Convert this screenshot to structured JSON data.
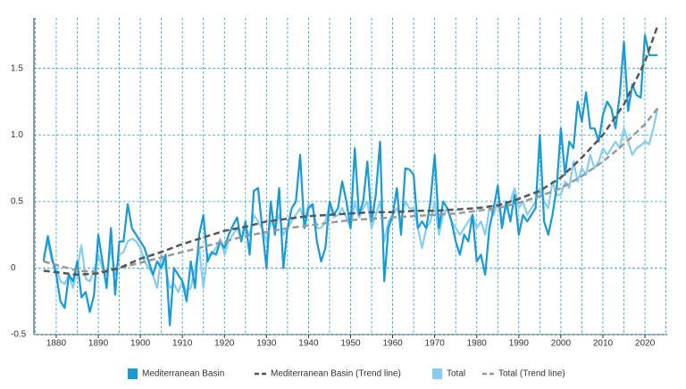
{
  "chart_data": {
    "type": "line",
    "x": [
      1877,
      1878,
      1879,
      1880,
      1881,
      1882,
      1883,
      1884,
      1885,
      1886,
      1887,
      1888,
      1889,
      1890,
      1891,
      1892,
      1893,
      1894,
      1895,
      1896,
      1897,
      1898,
      1899,
      1900,
      1901,
      1902,
      1903,
      1904,
      1905,
      1906,
      1907,
      1908,
      1909,
      1910,
      1911,
      1912,
      1913,
      1914,
      1915,
      1916,
      1917,
      1918,
      1919,
      1920,
      1921,
      1922,
      1923,
      1924,
      1925,
      1926,
      1927,
      1928,
      1929,
      1930,
      1931,
      1932,
      1933,
      1934,
      1935,
      1936,
      1937,
      1938,
      1939,
      1940,
      1941,
      1942,
      1943,
      1944,
      1945,
      1946,
      1947,
      1948,
      1949,
      1950,
      1951,
      1952,
      1953,
      1954,
      1955,
      1956,
      1957,
      1958,
      1959,
      1960,
      1961,
      1962,
      1963,
      1964,
      1965,
      1966,
      1967,
      1968,
      1969,
      1970,
      1971,
      1972,
      1973,
      1974,
      1975,
      1976,
      1977,
      1978,
      1979,
      1980,
      1981,
      1982,
      1983,
      1984,
      1985,
      1986,
      1987,
      1988,
      1989,
      1990,
      1991,
      1992,
      1993,
      1994,
      1995,
      1996,
      1997,
      1998,
      1999,
      2000,
      2001,
      2002,
      2003,
      2004,
      2005,
      2006,
      2007,
      2008,
      2009,
      2010,
      2011,
      2012,
      2013,
      2014,
      2015,
      2016,
      2017,
      2018,
      2019,
      2020,
      2021,
      2022,
      2023
    ],
    "series": [
      {
        "name": "Mediterranean Basin",
        "color": "#169ad8",
        "dash": false,
        "values": [
          0.05,
          0.24,
          0.08,
          -0.05,
          -0.25,
          -0.3,
          -0.05,
          -0.1,
          0.05,
          -0.22,
          -0.18,
          -0.33,
          -0.2,
          0.25,
          0.05,
          -0.15,
          0.3,
          -0.2,
          0.2,
          0.2,
          0.48,
          0.3,
          0.25,
          0.2,
          0.15,
          0.05,
          -0.05,
          0.05,
          0.0,
          0.1,
          -0.43,
          0.0,
          -0.05,
          -0.1,
          -0.25,
          0.05,
          -0.15,
          0.25,
          0.4,
          0.05,
          0.12,
          0.1,
          0.2,
          0.15,
          0.25,
          0.32,
          0.38,
          0.2,
          0.35,
          0.1,
          0.58,
          0.6,
          0.3,
          0.0,
          0.5,
          0.25,
          0.6,
          0.0,
          0.3,
          0.45,
          0.5,
          0.85,
          0.3,
          0.45,
          0.48,
          0.2,
          0.05,
          0.15,
          0.5,
          0.4,
          0.45,
          0.65,
          0.5,
          0.3,
          0.9,
          0.4,
          0.5,
          0.8,
          0.35,
          0.55,
          0.95,
          -0.1,
          0.3,
          0.4,
          0.6,
          0.25,
          0.75,
          0.74,
          0.7,
          0.3,
          0.35,
          0.3,
          0.5,
          0.85,
          0.3,
          0.5,
          0.45,
          0.35,
          0.2,
          0.1,
          0.25,
          0.2,
          0.4,
          0.05,
          0.1,
          -0.05,
          0.3,
          0.45,
          0.62,
          0.3,
          0.5,
          0.35,
          0.55,
          0.25,
          0.4,
          0.35,
          0.4,
          0.45,
          1.0,
          0.35,
          0.25,
          0.4,
          0.6,
          1.05,
          0.7,
          0.95,
          0.9,
          1.25,
          1.1,
          1.32,
          1.05,
          1.05,
          0.95,
          1.15,
          1.25,
          1.2,
          1.05,
          1.3,
          1.7,
          1.18,
          1.38,
          1.3,
          1.28,
          1.75,
          1.6,
          1.6,
          1.6
        ]
      },
      {
        "name": "Mediterranean Basin (Trend line)",
        "color": "#555555",
        "dash": true,
        "x": [
          1877,
          1885,
          1890,
          1895,
          1900,
          1905,
          1910,
          1915,
          1920,
          1925,
          1930,
          1935,
          1940,
          1945,
          1950,
          1955,
          1960,
          1965,
          1970,
          1975,
          1980,
          1985,
          1990,
          1995,
          2000,
          2005,
          2010,
          2015,
          2020,
          2023
        ],
        "values": [
          -0.02,
          -0.05,
          -0.04,
          0.0,
          0.07,
          0.12,
          0.18,
          0.23,
          0.28,
          0.31,
          0.35,
          0.37,
          0.39,
          0.4,
          0.41,
          0.42,
          0.42,
          0.43,
          0.43,
          0.44,
          0.45,
          0.47,
          0.52,
          0.58,
          0.68,
          0.83,
          1.0,
          1.23,
          1.55,
          1.82
        ]
      },
      {
        "name": "Total",
        "color": "#86cdf0",
        "dash": false,
        "values": [
          0.08,
          0.2,
          0.05,
          0.0,
          -0.1,
          -0.12,
          -0.05,
          -0.15,
          0.0,
          0.17,
          -0.08,
          -0.1,
          -0.02,
          0.1,
          0.0,
          -0.05,
          0.15,
          -0.05,
          0.1,
          0.12,
          0.2,
          0.22,
          0.2,
          0.15,
          0.05,
          0.0,
          -0.05,
          -0.15,
          0.1,
          0.0,
          -0.15,
          -0.12,
          -0.18,
          -0.1,
          -0.18,
          -0.15,
          0.0,
          0.15,
          -0.15,
          0.1,
          0.1,
          0.15,
          0.22,
          0.1,
          0.2,
          0.25,
          0.3,
          0.22,
          0.3,
          0.25,
          0.4,
          0.35,
          0.3,
          0.2,
          0.35,
          0.3,
          0.4,
          0.25,
          0.3,
          0.35,
          0.4,
          0.45,
          0.35,
          0.48,
          0.45,
          0.3,
          0.3,
          0.35,
          0.48,
          0.38,
          0.4,
          0.45,
          0.38,
          0.3,
          0.5,
          0.38,
          0.45,
          0.5,
          0.3,
          0.4,
          0.5,
          0.2,
          0.35,
          0.4,
          0.45,
          0.35,
          0.5,
          0.45,
          0.45,
          0.3,
          0.15,
          0.3,
          0.35,
          0.5,
          0.25,
          0.4,
          0.45,
          0.35,
          0.3,
          0.25,
          0.3,
          0.35,
          0.4,
          0.3,
          0.35,
          0.25,
          0.45,
          0.4,
          0.5,
          0.35,
          0.45,
          0.5,
          0.6,
          0.45,
          0.5,
          0.4,
          0.45,
          0.5,
          0.6,
          0.5,
          0.45,
          0.65,
          0.55,
          0.55,
          0.65,
          0.6,
          0.8,
          0.65,
          0.75,
          0.7,
          0.85,
          0.75,
          0.8,
          0.9,
          0.85,
          0.9,
          0.95,
          0.9,
          1.05,
          0.95,
          0.85,
          0.9,
          0.92,
          0.95,
          0.93,
          1.05,
          1.2
        ]
      },
      {
        "name": "Total (Trend line)",
        "color": "#999999",
        "dash": true,
        "x": [
          1877,
          1885,
          1890,
          1895,
          1900,
          1905,
          1910,
          1915,
          1920,
          1925,
          1930,
          1935,
          1940,
          1945,
          1950,
          1955,
          1960,
          1965,
          1970,
          1975,
          1980,
          1985,
          1990,
          1995,
          2000,
          2005,
          2010,
          2015,
          2020,
          2023
        ],
        "values": [
          0.05,
          -0.02,
          -0.03,
          0.0,
          0.04,
          0.08,
          0.12,
          0.16,
          0.2,
          0.24,
          0.27,
          0.3,
          0.32,
          0.34,
          0.36,
          0.37,
          0.38,
          0.39,
          0.4,
          0.41,
          0.43,
          0.45,
          0.49,
          0.54,
          0.6,
          0.69,
          0.8,
          0.93,
          1.08,
          1.2
        ]
      }
    ],
    "xlim": [
      1874.7,
      2025.3
    ],
    "xticks": [
      1880,
      1890,
      1900,
      1910,
      1920,
      1930,
      1940,
      1950,
      1960,
      1970,
      1980,
      1990,
      2000,
      2010,
      2020
    ],
    "xgrid": [
      1875,
      1880,
      1885,
      1890,
      1895,
      1900,
      1905,
      1910,
      1915,
      1920,
      1925,
      1930,
      1935,
      1940,
      1945,
      1950,
      1955,
      1960,
      1965,
      1970,
      1975,
      1980,
      1985,
      1990,
      1995,
      2000,
      2005,
      2010,
      2015,
      2020,
      2025
    ],
    "ylim": [
      -0.5,
      1.88
    ],
    "yticks": [
      -0.5,
      0,
      0.5,
      {
        "value": 1,
        "label": "1.0"
      },
      1.5
    ],
    "grid": true
  }
}
